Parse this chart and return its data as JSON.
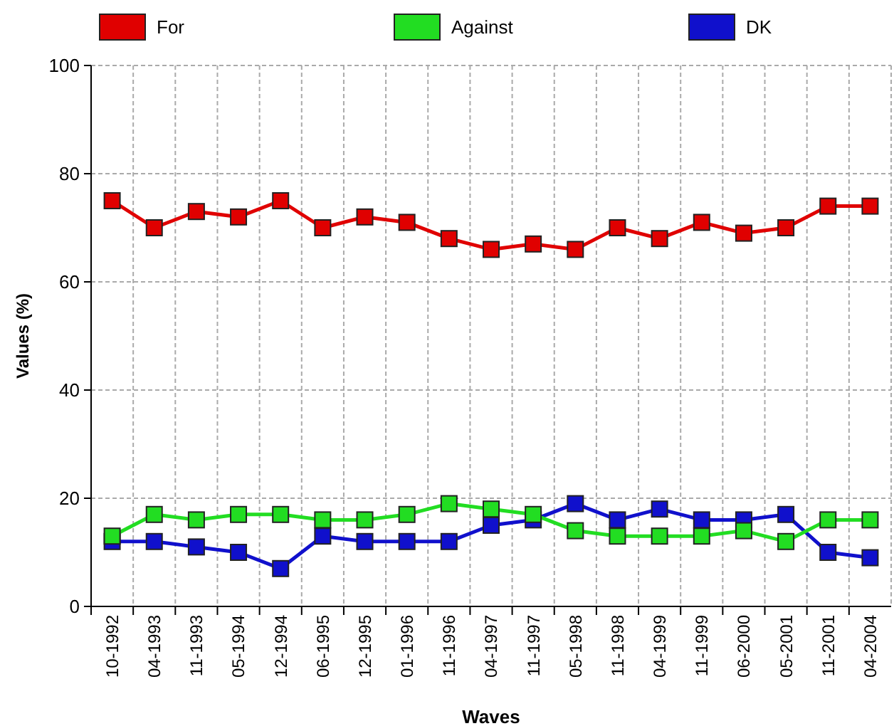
{
  "chart_data": {
    "type": "line",
    "xlabel": "Waves",
    "ylabel": "Values (%)",
    "categories": [
      "10-1992",
      "04-1993",
      "11-1993",
      "05-1994",
      "12-1994",
      "06-1995",
      "12-1995",
      "01-1996",
      "11-1996",
      "04-1997",
      "11-1997",
      "05-1998",
      "11-1998",
      "04-1999",
      "11-1999",
      "06-2000",
      "05-2001",
      "11-2001",
      "04-2004"
    ],
    "series": [
      {
        "name": "For",
        "color": "#e00000",
        "values": [
          75,
          70,
          73,
          72,
          75,
          70,
          72,
          71,
          68,
          66,
          67,
          66,
          70,
          68,
          71,
          69,
          70,
          74,
          74
        ]
      },
      {
        "name": "Against",
        "color": "#22dd22",
        "values": [
          13,
          17,
          16,
          17,
          17,
          16,
          16,
          17,
          19,
          18,
          17,
          14,
          13,
          13,
          13,
          14,
          12,
          16,
          16
        ]
      },
      {
        "name": "DK",
        "color": "#1010cc",
        "values": [
          12,
          12,
          11,
          10,
          7,
          13,
          12,
          12,
          12,
          15,
          16,
          19,
          16,
          18,
          16,
          16,
          17,
          10,
          9
        ]
      }
    ],
    "ylim": [
      0,
      100
    ],
    "yticks": [
      0,
      20,
      40,
      60,
      80,
      100
    ],
    "grid": true,
    "legend": "top",
    "marker": "square",
    "line_style": "solid"
  }
}
